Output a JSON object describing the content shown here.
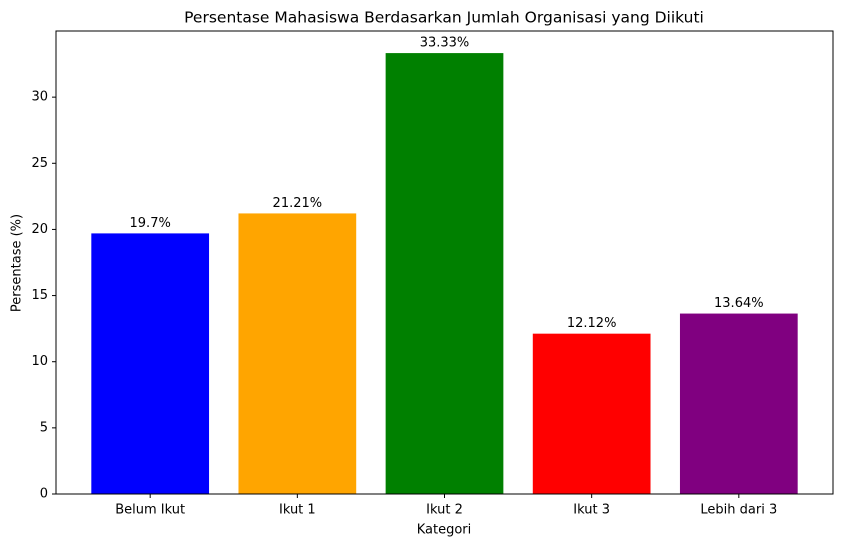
{
  "chart_data": {
    "type": "bar",
    "title": "Persentase Mahasiswa Berdasarkan Jumlah Organisasi yang Diikuti",
    "x_label": "Kategori",
    "y_label": "Persentase (%)",
    "categories": [
      "Belum Ikut",
      "Ikut 1",
      "Ikut 2",
      "Ikut 3",
      "Lebih dari 3"
    ],
    "values": [
      19.7,
      21.21,
      33.33,
      12.12,
      13.64
    ],
    "value_labels": [
      "19.7%",
      "21.21%",
      "33.33%",
      "12.12%",
      "13.64%"
    ],
    "colors": [
      "#0000ff",
      "#ffa500",
      "#008000",
      "#ff0000",
      "#800080"
    ],
    "ylim": [
      0,
      35.0
    ],
    "yticks": [
      0,
      5,
      10,
      15,
      20,
      25,
      30
    ],
    "grid": false
  }
}
